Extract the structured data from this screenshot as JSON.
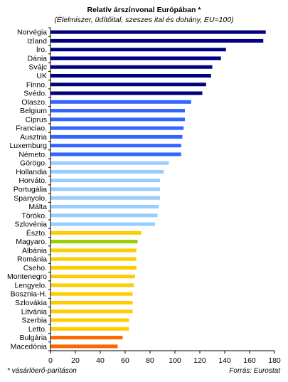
{
  "chart_data": {
    "type": "bar",
    "orientation": "horizontal",
    "title": "Relatív árszínvonal Európában *",
    "subtitle": "(Élelmiszer, üdítőital, szeszes ital és dohány, EU=100)",
    "categories": [
      "Norvégia",
      "Izland",
      "Íro.",
      "Dánia",
      "Svájc",
      "UK",
      "Finno.",
      "Svédo.",
      "Olaszo.",
      "Belgium",
      "Ciprus",
      "Franciao.",
      "Ausztria",
      "Luxemburg",
      "Németo.",
      "Görögo.",
      "Hollandia",
      "Horváto.",
      "Portugália",
      "Spanyolo.",
      "Málta",
      "Töröko.",
      "Szlovénia",
      "Észto.",
      "Magyaro.",
      "Albánia",
      "Románia",
      "Cseho.",
      "Montenegro",
      "Lengyelo.",
      "Bosznia-H.",
      "Szlovákia",
      "Litvánia",
      "Szerbia",
      "Letto.",
      "Bulgária",
      "Macedónia"
    ],
    "values": [
      173,
      171,
      141,
      137,
      130,
      129,
      125,
      122,
      113,
      108,
      108,
      107,
      106,
      105,
      105,
      95,
      91,
      88,
      88,
      88,
      87,
      86,
      84,
      73,
      70,
      69,
      69,
      69,
      68,
      67,
      66,
      66,
      66,
      63,
      63,
      58,
      54
    ],
    "colors": [
      "#000080",
      "#000080",
      "#000080",
      "#000080",
      "#000080",
      "#000080",
      "#000080",
      "#000080",
      "#3366ff",
      "#3366ff",
      "#3366ff",
      "#3366ff",
      "#3366ff",
      "#3366ff",
      "#3366ff",
      "#99ccff",
      "#99ccff",
      "#99ccff",
      "#99ccff",
      "#99ccff",
      "#99ccff",
      "#99ccff",
      "#99ccff",
      "#ffcc00",
      "#99cc00",
      "#ffcc00",
      "#ffcc00",
      "#ffcc00",
      "#ffcc00",
      "#ffcc00",
      "#ffcc00",
      "#ffcc00",
      "#ffcc00",
      "#ffcc00",
      "#ffcc00",
      "#ff6600",
      "#ff6600"
    ],
    "xlim": [
      0,
      180
    ],
    "xticks": [
      "0",
      "20",
      "40",
      "60",
      "80",
      "100",
      "120",
      "140",
      "160",
      "180"
    ],
    "grid": false
  },
  "footnote": "* vásárlóerő-paritáson",
  "source": "Forrás: Eurostat"
}
